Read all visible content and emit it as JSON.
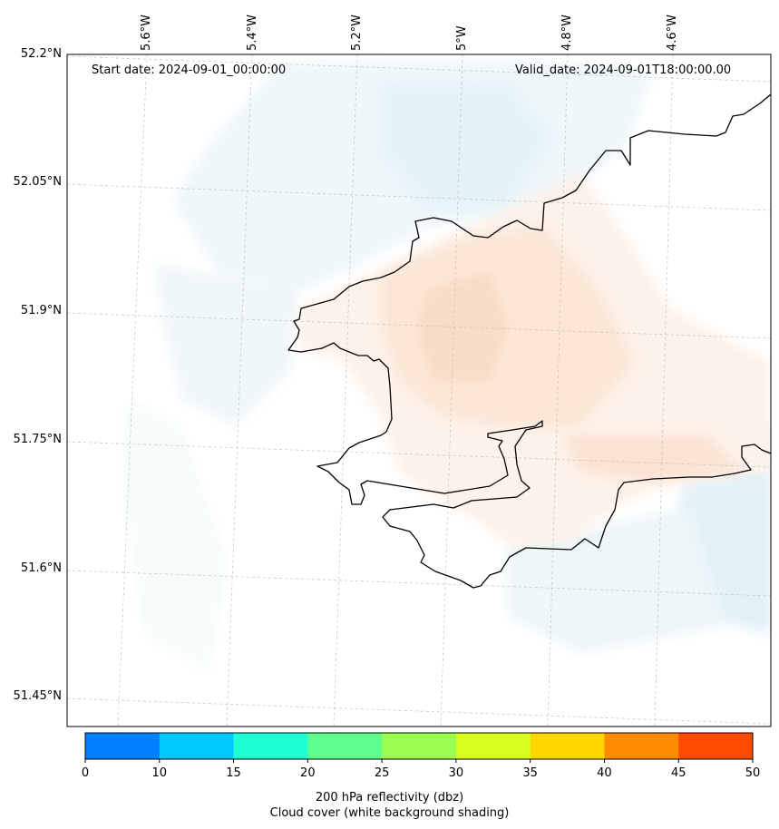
{
  "map": {
    "start_date": "Start date: 2024-09-01_00:00:00",
    "valid_date": "Valid_date: 2024-09-01T18:00:00.00",
    "lon_labels": [
      "5.6°W",
      "5.4°W",
      "5.2°W",
      "5°W",
      "4.8°W",
      "4.6°W"
    ],
    "lat_labels": [
      "52.2°N",
      "52.05°N",
      "51.9°N",
      "51.75°N",
      "51.6°N",
      "51.45°N"
    ],
    "colors": {
      "coast": "#000000",
      "grid": "#c8c8c8",
      "cloud_blue": "#e4f3f9",
      "warm": "#fbe3cf"
    }
  },
  "colorbar": {
    "ticks": [
      "0",
      "10",
      "15",
      "20",
      "25",
      "30",
      "35",
      "40",
      "45",
      "50"
    ],
    "colors": [
      "#0080ff",
      "#00c8ff",
      "#1effd2",
      "#5dff8f",
      "#9bff50",
      "#d6ff1e",
      "#ffd600",
      "#ff8c00",
      "#ff4a00"
    ],
    "label_line1": "200 hPa reflectivity (dbz)",
    "label_line2": "Cloud cover (white background shading)"
  }
}
